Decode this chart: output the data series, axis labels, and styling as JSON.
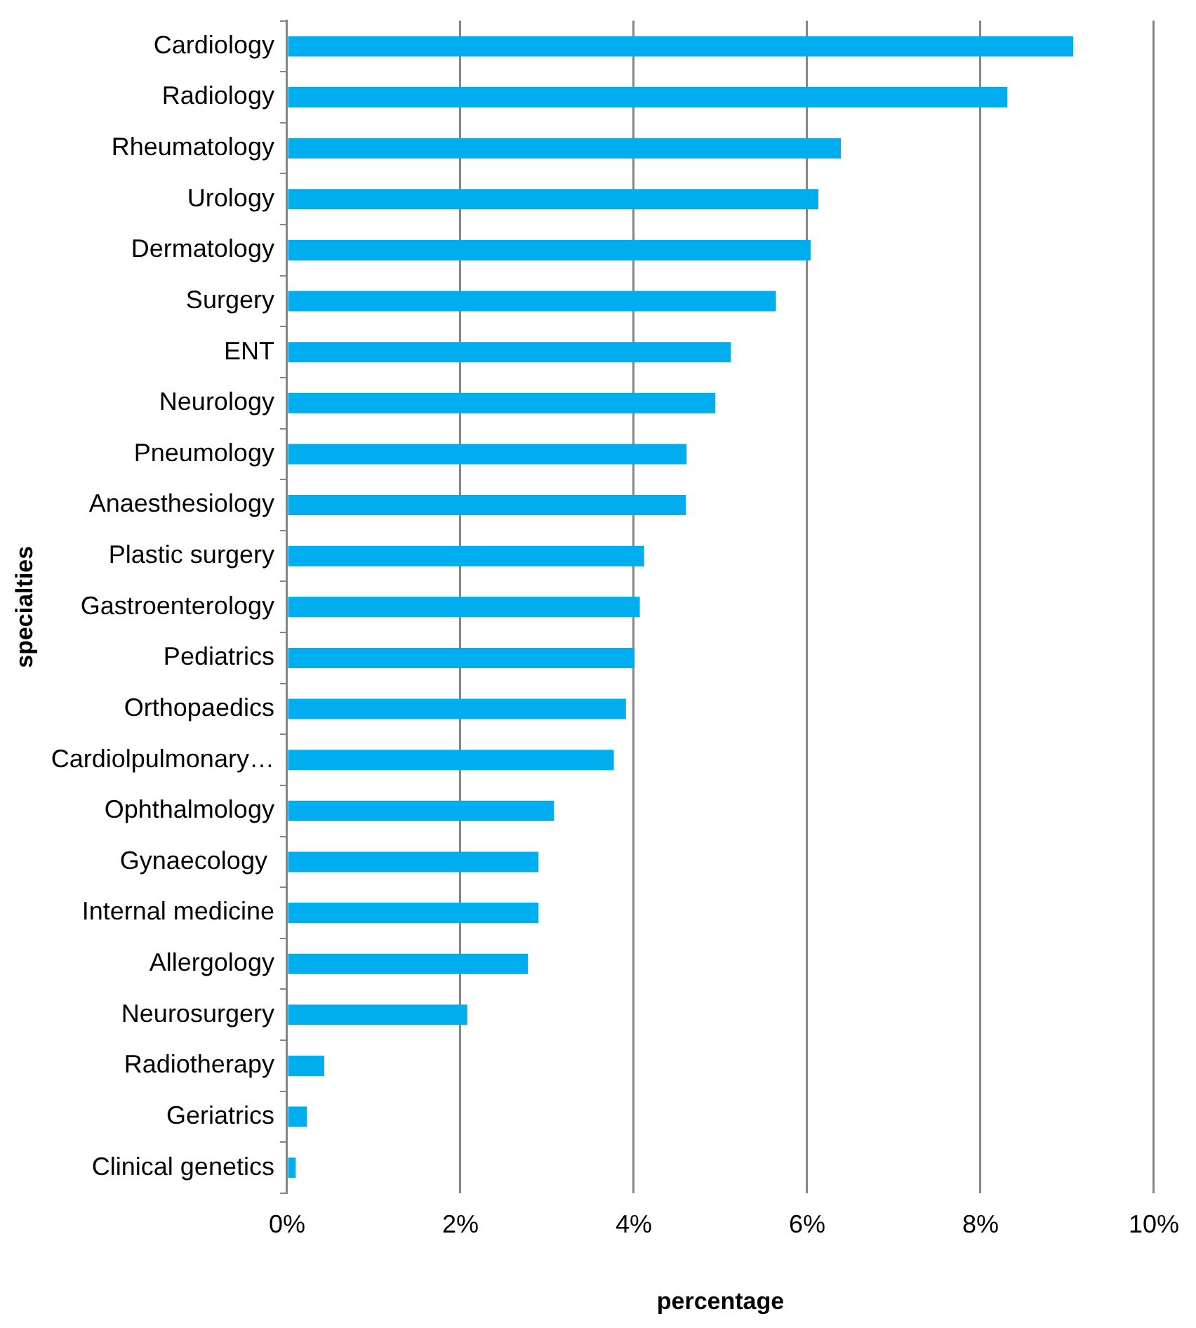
{
  "chart_data": {
    "type": "bar",
    "orientation": "horizontal",
    "xlabel": "percentage",
    "ylabel": "specialties",
    "categories": [
      "Cardiology",
      "Radiology",
      "Rheumatology",
      "Urology",
      "Dermatology",
      "Surgery",
      "ENT",
      "Neurology",
      "Pneumology",
      "Anaesthesiology",
      "Plastic surgery",
      "Gastroenterology",
      "Pediatrics",
      "Orthopaedics",
      "Cardiolpulmonary…",
      "Ophthalmology",
      "Gynaecology ",
      "Internal medicine",
      "Allergology",
      "Neurosurgery",
      "Radiotherapy",
      "Geriatrics",
      "Clinical genetics"
    ],
    "values": [
      9.07,
      8.31,
      6.39,
      6.13,
      6.04,
      5.64,
      5.12,
      4.94,
      4.61,
      4.6,
      4.12,
      4.07,
      4.01,
      3.91,
      3.77,
      3.08,
      2.9,
      2.9,
      2.78,
      2.08,
      0.43,
      0.23,
      0.1
    ],
    "color": "#00aeef",
    "xlim": [
      0,
      10
    ],
    "xticks": [
      {
        "value": 0,
        "label": "0%"
      },
      {
        "value": 2,
        "label": "2%"
      },
      {
        "value": 4,
        "label": "4%"
      },
      {
        "value": 6,
        "label": "6%"
      },
      {
        "value": 8,
        "label": "8%"
      },
      {
        "value": 10,
        "label": "10%"
      }
    ],
    "grid": "x",
    "legend": false
  }
}
